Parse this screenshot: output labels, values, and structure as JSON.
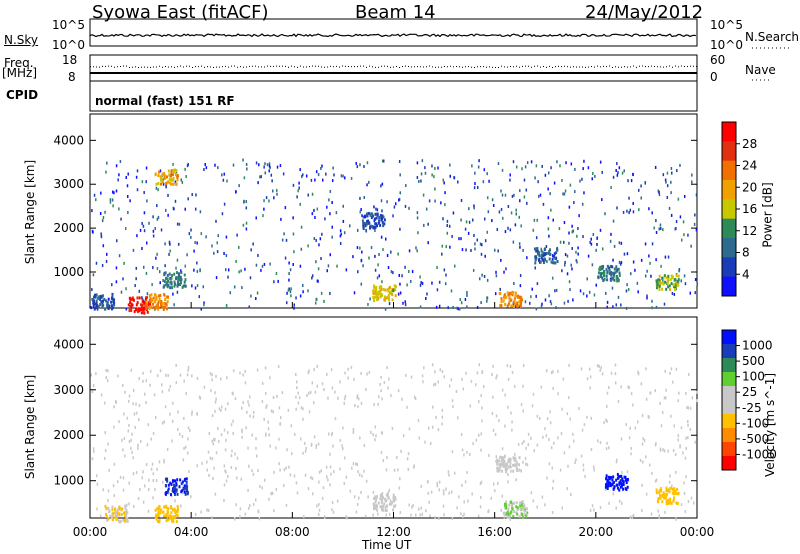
{
  "header": {
    "title": "Syowa East (fitACF)",
    "beam": "Beam 14",
    "date": "24/May/2012"
  },
  "aux_panels": {
    "nsky_label": "N.Sky",
    "nsky_ticks": [
      "10^5",
      "10^0"
    ],
    "nsearch_label": "N.Search",
    "nsearch_ticks": [
      "10^5",
      "10^0"
    ],
    "freq_label_line1": "Freq.",
    "freq_label_line2": "[MHz]",
    "freq_ticks": [
      "18",
      "8"
    ],
    "nave_label": "Nave",
    "nave_ticks": [
      "60",
      "0"
    ],
    "cpid_label": "CPID",
    "cpid_text": "normal (fast) 151 RF"
  },
  "x_axis": {
    "label": "Time UT",
    "ticks": [
      "00:00",
      "04:00",
      "08:00",
      "12:00",
      "16:00",
      "20:00",
      "00:00"
    ]
  },
  "colors": {
    "power_scale": [
      "#1010ff",
      "#1a3cb8",
      "#2e6a8e",
      "#2f8a5a",
      "#c8c800",
      "#f0a000",
      "#f07000",
      "#e03010",
      "#ff0000"
    ],
    "velocity_scale": [
      "#ff0000",
      "#ff4500",
      "#ff8c00",
      "#ffc000",
      "#c8c8c8",
      "#c8c8c8",
      "#60d030",
      "#2e8b57",
      "#1a3cb8",
      "#0010ff"
    ]
  },
  "chart_data": [
    {
      "type": "heatmap",
      "title": "",
      "ylabel": "Slant Range [km]",
      "xlabel": "",
      "ylim": [
        180,
        4600
      ],
      "yticks": [
        "1000",
        "2000",
        "3000",
        "4000"
      ],
      "colorbar": {
        "label": "Power [dB]",
        "ticks": [
          "4",
          "8",
          "12",
          "16",
          "20",
          "24",
          "28"
        ],
        "range": [
          0,
          30
        ]
      },
      "clusters": [
        {
          "t": 0.5,
          "r": 350,
          "v": 6
        },
        {
          "t": 1.9,
          "r": 270,
          "v": 28
        },
        {
          "t": 2.6,
          "r": 350,
          "v": 20
        },
        {
          "t": 3.3,
          "r": 850,
          "v": 10
        },
        {
          "t": 3.0,
          "r": 3200,
          "v": 18
        },
        {
          "t": 11.6,
          "r": 550,
          "v": 16
        },
        {
          "t": 11.2,
          "r": 2200,
          "v": 6
        },
        {
          "t": 16.6,
          "r": 420,
          "v": 20
        },
        {
          "t": 18.0,
          "r": 1400,
          "v": 7
        },
        {
          "t": 20.5,
          "r": 1000,
          "v": 9
        },
        {
          "t": 22.8,
          "r": 800,
          "v": 14
        }
      ]
    },
    {
      "type": "heatmap",
      "title": "",
      "ylabel": "Slant Range [km]",
      "xlabel": "Time UT",
      "ylim": [
        180,
        4600
      ],
      "yticks": [
        "1000",
        "2000",
        "3000",
        "4000"
      ],
      "colorbar": {
        "label": "Velocity [m s^-1]",
        "ticks": [
          "1000",
          "500",
          "100",
          "25",
          "-25",
          "-100",
          "-500",
          "-1000"
        ],
        "range": [
          -1000,
          1000
        ]
      },
      "clusters": [
        {
          "t": 1.0,
          "r": 300,
          "v": -200
        },
        {
          "t": 3.0,
          "r": 300,
          "v": -300
        },
        {
          "t": 3.4,
          "r": 900,
          "v": 800
        },
        {
          "t": 11.6,
          "r": 550,
          "v": 100
        },
        {
          "t": 16.5,
          "r": 1400,
          "v": 10
        },
        {
          "t": 16.8,
          "r": 400,
          "v": 200
        },
        {
          "t": 20.8,
          "r": 1000,
          "v": 900
        },
        {
          "t": 22.8,
          "r": 700,
          "v": -300
        }
      ]
    }
  ]
}
